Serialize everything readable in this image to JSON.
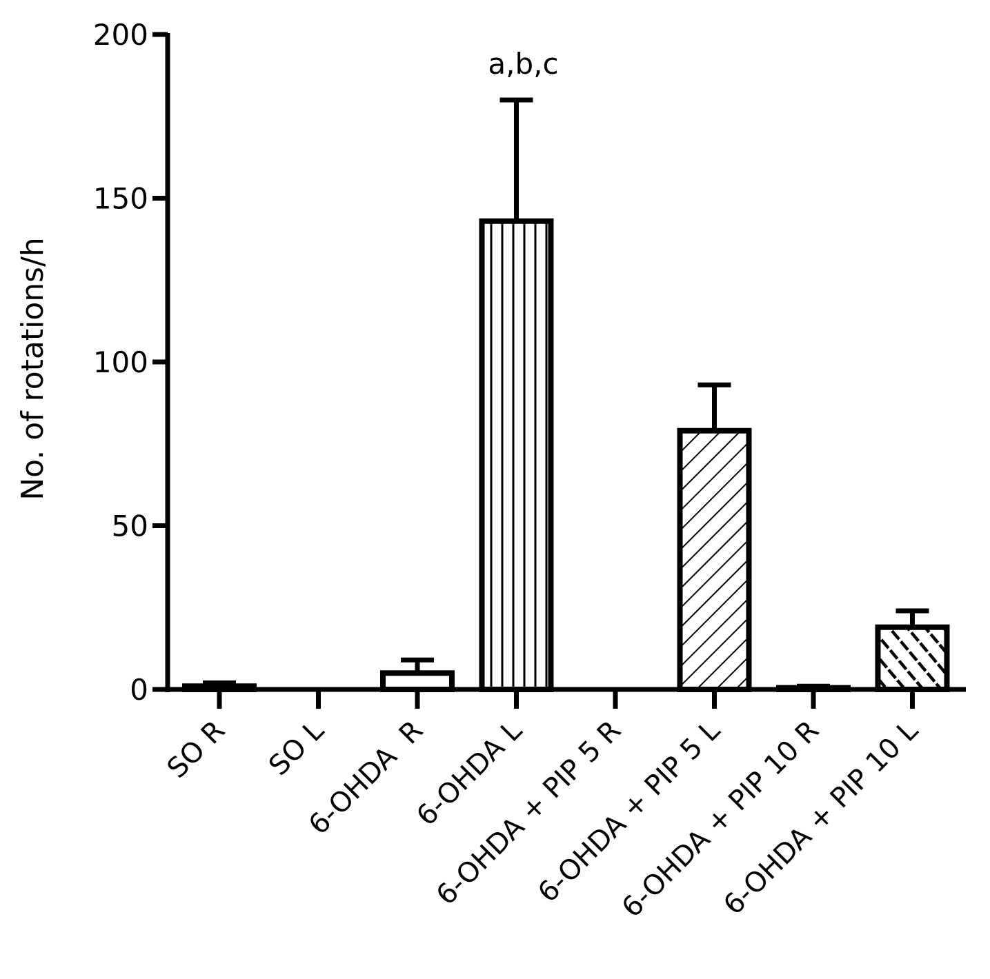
{
  "chart_data": {
    "type": "bar",
    "title": "",
    "xlabel": "",
    "ylabel": "No. of rotations/h",
    "ylim": [
      0,
      200
    ],
    "yticks": [
      0,
      50,
      100,
      150,
      200
    ],
    "y_tick_labels": [
      "0",
      "50",
      "100",
      "150",
      "200"
    ],
    "grid": false,
    "legend": "none",
    "categories": [
      "SO R",
      "SO L",
      "6-OHDA  R",
      "6-OHDA L",
      "6-OHDA + PIP 5 R",
      "6-OHDA + PIP 5 L",
      "6-OHDA + PIP 10 R",
      "6-OHDA + PIP 10 L"
    ],
    "values": [
      1,
      0,
      5,
      143,
      0,
      79,
      0.5,
      19
    ],
    "error": [
      1,
      0,
      4,
      37,
      0,
      14,
      0.5,
      5
    ],
    "patterns": [
      "none",
      "none",
      "none",
      "vertical",
      "none",
      "diagonal",
      "none",
      "crosshatch"
    ],
    "annotations": [
      {
        "category_index": 3,
        "text": "a,b,c"
      }
    ],
    "colors": {
      "stroke": "#000000",
      "fill": "#ffffff"
    }
  }
}
